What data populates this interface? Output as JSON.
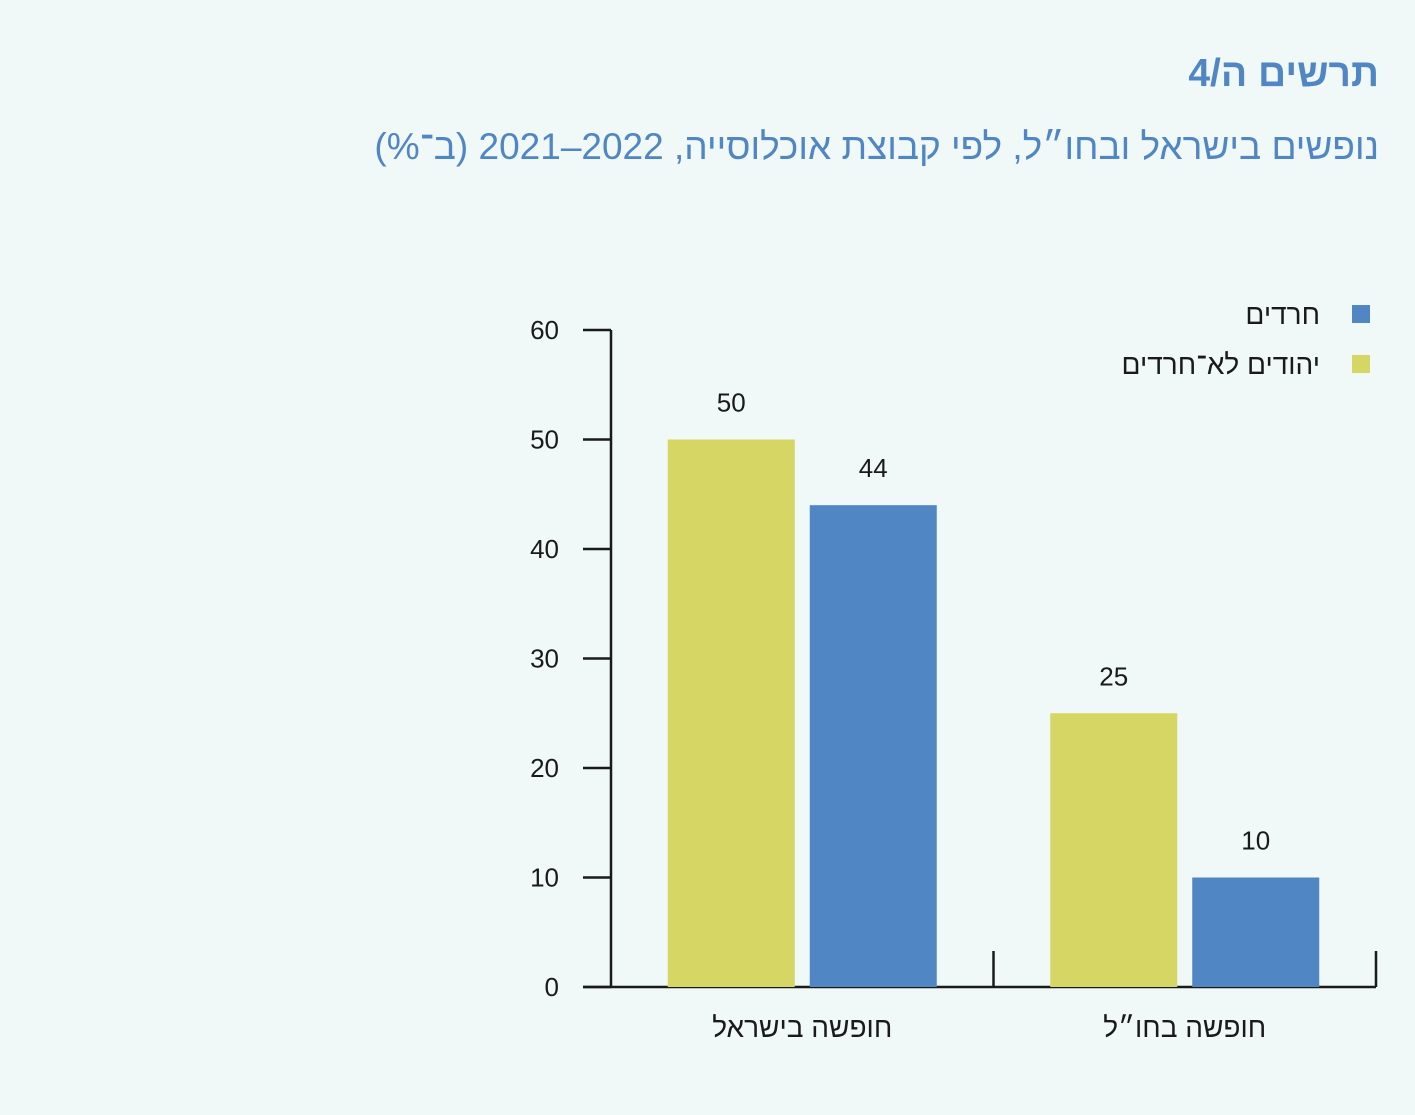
{
  "title": "תרשים ה/4",
  "subtitle": "נופשים בישראל ובחו״ל, לפי קבוצת אוכלוסייה, 2022–2021 (ב־%)",
  "chart_data": {
    "type": "bar",
    "categories": [
      "חופשה בישראל",
      "חופשה בחו״ל"
    ],
    "series": [
      {
        "name": "יהודים לא־חרדים",
        "values": [
          50,
          25
        ],
        "color": "#d6d664"
      },
      {
        "name": "חרדים",
        "values": [
          44,
          10
        ],
        "color": "#4f86c3"
      }
    ],
    "yticks": [
      "0",
      "10",
      "20",
      "30",
      "40",
      "50",
      "60"
    ],
    "ylim": [
      0,
      60
    ],
    "grid": false,
    "legend": "top-right",
    "legend_order": [
      "חרדים",
      "יהודים לא־חרדים"
    ]
  }
}
